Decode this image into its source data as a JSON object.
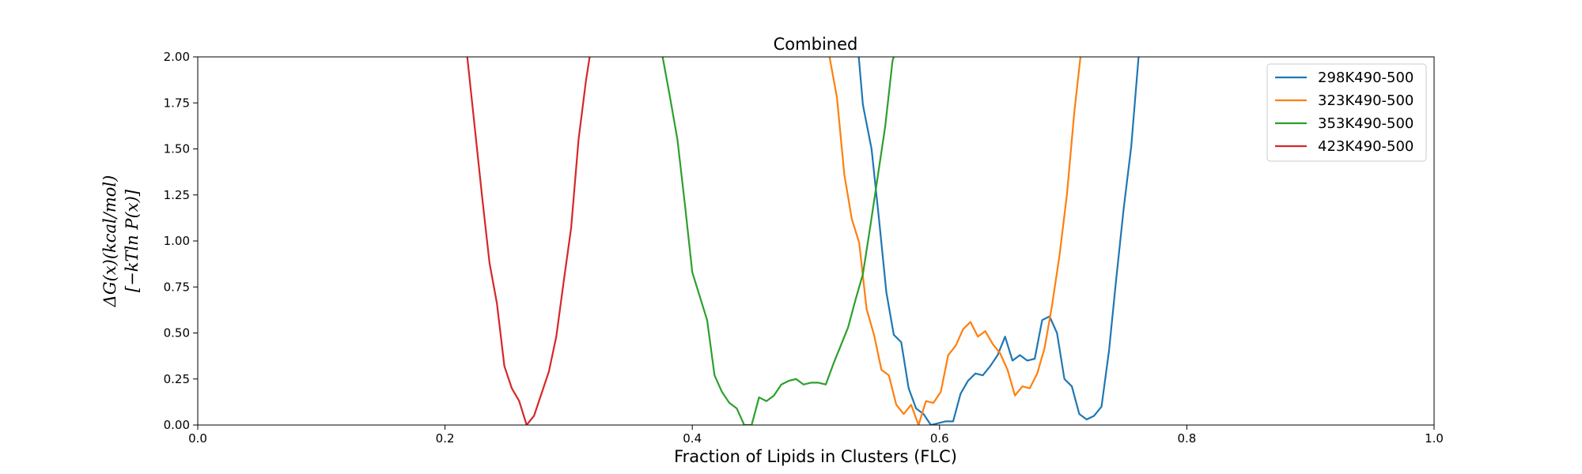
{
  "chart_data": {
    "type": "line",
    "title": "Combined",
    "xlabel": "Fraction of Lipids in Clusters (FLC)",
    "ylabel_lines": [
      "ΔG(x)(kcal/mol)",
      "[−kTln P(x)]"
    ],
    "xlim": [
      0.0,
      1.0
    ],
    "ylim": [
      0.0,
      2.0
    ],
    "xticks": [
      "0.0",
      "0.2",
      "0.4",
      "0.6",
      "0.8",
      "1.0"
    ],
    "yticks": [
      "0.00",
      "0.25",
      "0.50",
      "0.75",
      "1.00",
      "1.25",
      "1.50",
      "1.75",
      "2.00"
    ],
    "grid": false,
    "legend_position": "top-right",
    "series": [
      {
        "name": "298K490-500",
        "color": "#1f77b4",
        "points": [
          [
            0.534,
            2.05
          ],
          [
            0.538,
            1.74
          ],
          [
            0.545,
            1.5
          ],
          [
            0.551,
            1.12
          ],
          [
            0.557,
            0.72
          ],
          [
            0.563,
            0.49
          ],
          [
            0.569,
            0.45
          ],
          [
            0.575,
            0.2
          ],
          [
            0.581,
            0.09
          ],
          [
            0.587,
            0.06
          ],
          [
            0.593,
            0.0
          ],
          [
            0.599,
            0.01
          ],
          [
            0.605,
            0.02
          ],
          [
            0.611,
            0.02
          ],
          [
            0.617,
            0.17
          ],
          [
            0.623,
            0.24
          ],
          [
            0.629,
            0.28
          ],
          [
            0.635,
            0.27
          ],
          [
            0.641,
            0.32
          ],
          [
            0.647,
            0.38
          ],
          [
            0.653,
            0.48
          ],
          [
            0.659,
            0.35
          ],
          [
            0.665,
            0.38
          ],
          [
            0.671,
            0.35
          ],
          [
            0.677,
            0.36
          ],
          [
            0.683,
            0.57
          ],
          [
            0.689,
            0.59
          ],
          [
            0.695,
            0.5
          ],
          [
            0.701,
            0.25
          ],
          [
            0.707,
            0.21
          ],
          [
            0.713,
            0.06
          ],
          [
            0.719,
            0.03
          ],
          [
            0.725,
            0.05
          ],
          [
            0.731,
            0.1
          ],
          [
            0.737,
            0.4
          ],
          [
            0.743,
            0.8
          ],
          [
            0.749,
            1.18
          ],
          [
            0.755,
            1.51
          ],
          [
            0.761,
            2.0
          ],
          [
            0.764,
            2.1
          ]
        ]
      },
      {
        "name": "323K490-500",
        "color": "#ff7f0e",
        "points": [
          [
            0.511,
            2.0
          ],
          [
            0.517,
            1.78
          ],
          [
            0.523,
            1.36
          ],
          [
            0.529,
            1.12
          ],
          [
            0.535,
            0.99
          ],
          [
            0.541,
            0.63
          ],
          [
            0.547,
            0.49
          ],
          [
            0.553,
            0.3
          ],
          [
            0.559,
            0.27
          ],
          [
            0.565,
            0.11
          ],
          [
            0.571,
            0.06
          ],
          [
            0.577,
            0.11
          ],
          [
            0.583,
            0.0
          ],
          [
            0.589,
            0.13
          ],
          [
            0.595,
            0.12
          ],
          [
            0.601,
            0.18
          ],
          [
            0.607,
            0.38
          ],
          [
            0.613,
            0.43
          ],
          [
            0.619,
            0.52
          ],
          [
            0.625,
            0.56
          ],
          [
            0.631,
            0.48
          ],
          [
            0.637,
            0.51
          ],
          [
            0.643,
            0.44
          ],
          [
            0.649,
            0.39
          ],
          [
            0.655,
            0.3
          ],
          [
            0.661,
            0.16
          ],
          [
            0.667,
            0.21
          ],
          [
            0.673,
            0.2
          ],
          [
            0.679,
            0.28
          ],
          [
            0.685,
            0.42
          ],
          [
            0.691,
            0.65
          ],
          [
            0.697,
            0.92
          ],
          [
            0.703,
            1.25
          ],
          [
            0.709,
            1.7
          ],
          [
            0.714,
            2.0
          ]
        ]
      },
      {
        "name": "353K490-500",
        "color": "#2ca02c",
        "points": [
          [
            0.376,
            2.0
          ],
          [
            0.382,
            1.78
          ],
          [
            0.388,
            1.55
          ],
          [
            0.394,
            1.2
          ],
          [
            0.4,
            0.83
          ],
          [
            0.406,
            0.7
          ],
          [
            0.412,
            0.57
          ],
          [
            0.418,
            0.27
          ],
          [
            0.424,
            0.18
          ],
          [
            0.43,
            0.12
          ],
          [
            0.436,
            0.09
          ],
          [
            0.442,
            0.0
          ],
          [
            0.448,
            0.0
          ],
          [
            0.454,
            0.15
          ],
          [
            0.46,
            0.13
          ],
          [
            0.466,
            0.16
          ],
          [
            0.472,
            0.22
          ],
          [
            0.478,
            0.24
          ],
          [
            0.484,
            0.25
          ],
          [
            0.49,
            0.22
          ],
          [
            0.496,
            0.23
          ],
          [
            0.502,
            0.23
          ],
          [
            0.508,
            0.22
          ],
          [
            0.514,
            0.33
          ],
          [
            0.52,
            0.43
          ],
          [
            0.526,
            0.53
          ],
          [
            0.532,
            0.68
          ],
          [
            0.538,
            0.82
          ],
          [
            0.544,
            1.08
          ],
          [
            0.55,
            1.35
          ],
          [
            0.556,
            1.62
          ],
          [
            0.562,
            1.98
          ],
          [
            0.563,
            2.0
          ]
        ]
      },
      {
        "name": "423K490-500",
        "color": "#d62728",
        "points": [
          [
            0.218,
            2.0
          ],
          [
            0.224,
            1.62
          ],
          [
            0.23,
            1.24
          ],
          [
            0.236,
            0.88
          ],
          [
            0.242,
            0.66
          ],
          [
            0.248,
            0.32
          ],
          [
            0.254,
            0.2
          ],
          [
            0.26,
            0.13
          ],
          [
            0.266,
            0.0
          ],
          [
            0.272,
            0.05
          ],
          [
            0.278,
            0.17
          ],
          [
            0.284,
            0.29
          ],
          [
            0.29,
            0.48
          ],
          [
            0.296,
            0.78
          ],
          [
            0.302,
            1.07
          ],
          [
            0.308,
            1.55
          ],
          [
            0.314,
            1.87
          ],
          [
            0.317,
            2.0
          ]
        ]
      }
    ]
  }
}
